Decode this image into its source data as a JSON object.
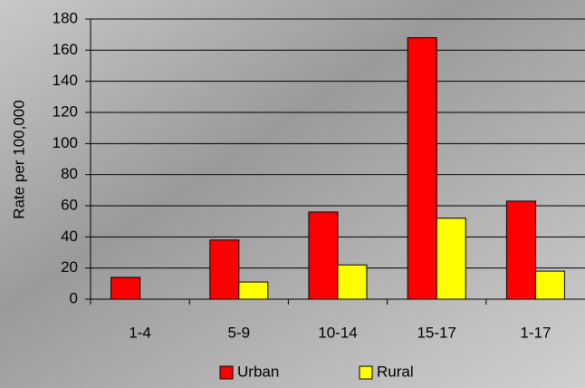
{
  "chart_data": {
    "type": "bar",
    "y_label": "Rate per 100,000",
    "categories": [
      "1-4",
      "5-9",
      "10-14",
      "15-17",
      "1-17"
    ],
    "series": [
      {
        "name": "Urban",
        "color": "#ff0000",
        "values": [
          14,
          38,
          56,
          168,
          63
        ]
      },
      {
        "name": "Rural",
        "color": "#ffff00",
        "values": [
          null,
          11,
          22,
          52,
          18
        ]
      }
    ],
    "ylim": [
      0,
      180
    ],
    "yticks": [
      0,
      20,
      40,
      60,
      80,
      100,
      120,
      140,
      160,
      180
    ],
    "grid": true,
    "legend": "bottom"
  }
}
